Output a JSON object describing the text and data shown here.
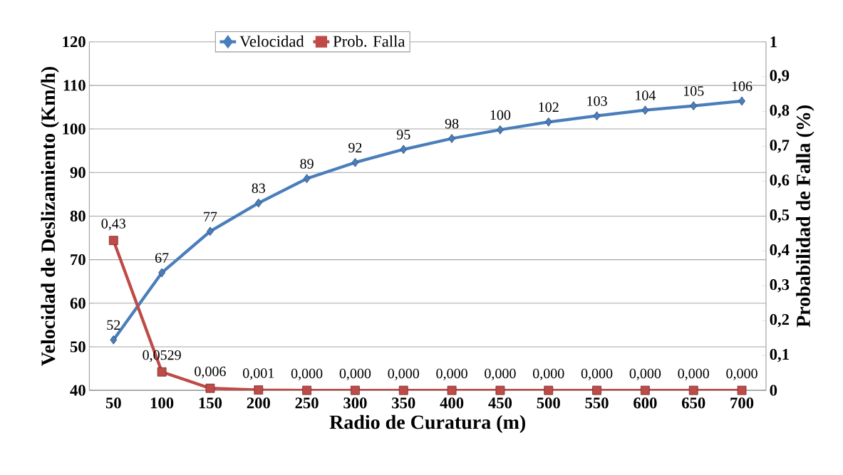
{
  "chart_data": {
    "type": "line",
    "xlabel": "Radio de Curatura (m)",
    "ylabel": "Velocidad de Deslizamiento (Km/h)",
    "y2label": "Probabilidad de Falla (%)",
    "categories": [
      "50",
      "100",
      "150",
      "200",
      "250",
      "300",
      "350",
      "400",
      "450",
      "500",
      "550",
      "600",
      "650",
      "700"
    ],
    "series": [
      {
        "name": "Velocidad",
        "color": "#4a7ebb",
        "marker": "diamond",
        "values": [
          51.6,
          67,
          76.5,
          83,
          88.6,
          92.3,
          95.3,
          97.8,
          99.8,
          101.6,
          103,
          104.3,
          105.3,
          106.4
        ],
        "value_labels": [
          "52",
          "67",
          "77",
          "83",
          "89",
          "92",
          "95",
          "98",
          "100",
          "102",
          "103",
          "104",
          "105",
          "106"
        ]
      },
      {
        "name": "Prob. Falla",
        "color": "#be4b48",
        "marker": "square",
        "axis": "y2",
        "values": [
          0.43,
          0.0529,
          0.006,
          0.001,
          0,
          0,
          0,
          0,
          0,
          0,
          0,
          0,
          0,
          0
        ],
        "value_labels": [
          "0,43",
          "0,0529",
          "0,006",
          "0,001",
          "0,000",
          "0,000",
          "0,000",
          "0,000",
          "0,000",
          "0,000",
          "0,000",
          "0,000",
          "0,000",
          "0,000"
        ]
      }
    ],
    "ylim": [
      40,
      120
    ],
    "yticks": [
      40,
      50,
      60,
      70,
      80,
      90,
      100,
      110,
      120
    ],
    "y2lim": [
      0,
      1
    ],
    "y2ticks": [
      0,
      {
        "value": 0.1,
        "label": "0,1"
      },
      {
        "value": 0.2,
        "label": "0,2"
      },
      {
        "value": 0.3,
        "label": "0,3"
      },
      {
        "value": 0.4,
        "label": "0,4"
      },
      {
        "value": 0.5,
        "label": "0,5"
      },
      {
        "value": 0.6,
        "label": "0,6"
      },
      {
        "value": 0.7,
        "label": "0,7"
      },
      {
        "value": 0.8,
        "label": "0,8"
      },
      {
        "value": 0.9,
        "label": "0,9"
      },
      1
    ],
    "grid": "y",
    "legend": "top",
    "line_style": "solid"
  }
}
